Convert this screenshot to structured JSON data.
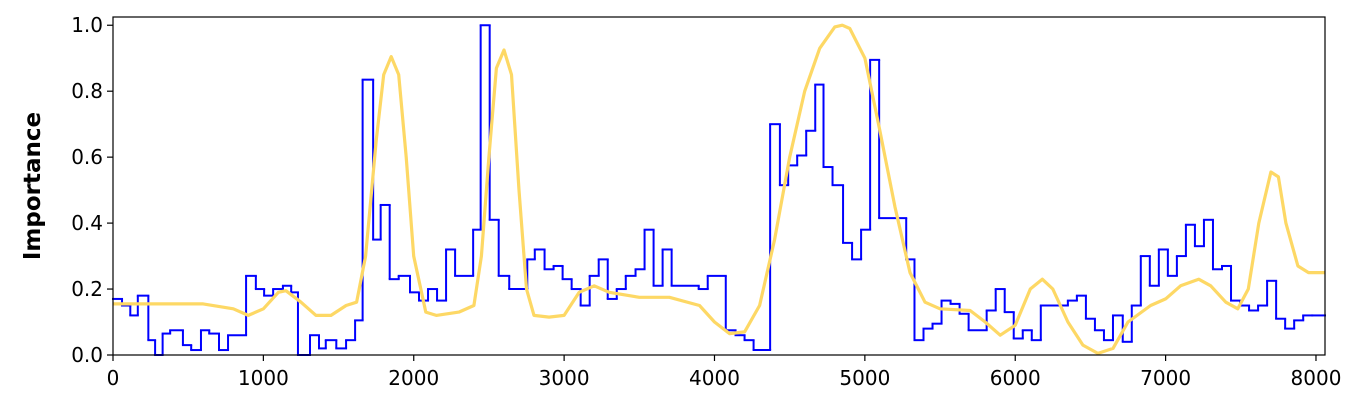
{
  "chart_data": {
    "type": "line",
    "ylabel": "Importance",
    "xlim": [
      0,
      8060
    ],
    "ylim": [
      0,
      1.025
    ],
    "xticks": [
      0,
      1000,
      2000,
      3000,
      4000,
      5000,
      6000,
      7000,
      8000
    ],
    "yticks": [
      {
        "value": 0,
        "label": "0.0"
      },
      {
        "value": 0.2,
        "label": "0.2"
      },
      {
        "value": 0.4,
        "label": "0.4"
      },
      {
        "value": 0.6,
        "label": "0.6"
      },
      {
        "value": 0.8,
        "label": "0.8"
      },
      {
        "value": 1,
        "label": "1.0"
      }
    ],
    "grid": false,
    "series": [
      {
        "color": "#0000ff",
        "step": "post",
        "x": [
          0,
          60,
          115,
          165,
          235,
          280,
          330,
          380,
          465,
          520,
          585,
          640,
          705,
          765,
          885,
          950,
          1005,
          1065,
          1130,
          1185,
          1230,
          1310,
          1370,
          1415,
          1485,
          1550,
          1610,
          1660,
          1730,
          1780,
          1840,
          1900,
          1975,
          2035,
          2095,
          2155,
          2215,
          2275,
          2395,
          2445,
          2505,
          2565,
          2635,
          2755,
          2805,
          2870,
          2930,
          2990,
          3050,
          3110,
          3170,
          3230,
          3290,
          3350,
          3410,
          3475,
          3535,
          3595,
          3655,
          3715,
          3895,
          3955,
          4075,
          4140,
          4200,
          4260,
          4370,
          4435,
          4490,
          4550,
          4610,
          4670,
          4725,
          4785,
          4855,
          4915,
          4975,
          5035,
          5095,
          5275,
          5330,
          5390,
          5450,
          5510,
          5570,
          5630,
          5690,
          5810,
          5870,
          5930,
          5990,
          6050,
          6110,
          6170,
          6350,
          6410,
          6470,
          6530,
          6590,
          6650,
          6715,
          6775,
          6835,
          6895,
          6955,
          7015,
          7075,
          7135,
          7195,
          7255,
          7315,
          7375,
          7435,
          7495,
          7555,
          7615,
          7675,
          7735,
          7795,
          7855,
          7915,
          7975
        ],
        "values": [
          0.17,
          0.15,
          0.12,
          0.18,
          0.045,
          0,
          0.065,
          0.075,
          0.03,
          0.015,
          0.075,
          0.065,
          0.015,
          0.06,
          0.24,
          0.2,
          0.18,
          0.2,
          0.21,
          0.19,
          0,
          0.06,
          0.02,
          0.045,
          0.02,
          0.045,
          0.105,
          0.835,
          0.35,
          0.455,
          0.23,
          0.24,
          0.19,
          0.165,
          0.2,
          0.165,
          0.32,
          0.24,
          0.38,
          1.0,
          0.41,
          0.24,
          0.2,
          0.29,
          0.32,
          0.26,
          0.27,
          0.23,
          0.2,
          0.15,
          0.24,
          0.29,
          0.17,
          0.2,
          0.24,
          0.26,
          0.38,
          0.21,
          0.32,
          0.21,
          0.2,
          0.24,
          0.075,
          0.06,
          0.045,
          0.015,
          0.7,
          0.515,
          0.575,
          0.605,
          0.68,
          0.82,
          0.57,
          0.515,
          0.34,
          0.29,
          0.38,
          0.895,
          0.415,
          0.29,
          0.045,
          0.08,
          0.095,
          0.165,
          0.155,
          0.125,
          0.075,
          0.135,
          0.2,
          0.13,
          0.05,
          0.075,
          0.045,
          0.15,
          0.165,
          0.18,
          0.11,
          0.075,
          0.045,
          0.12,
          0.04,
          0.15,
          0.3,
          0.21,
          0.32,
          0.24,
          0.3,
          0.395,
          0.33,
          0.41,
          0.26,
          0.27,
          0.165,
          0.15,
          0.135,
          0.15,
          0.225,
          0.11,
          0.08,
          0.105,
          0.12,
          0.12
        ]
      },
      {
        "color": "#fdd865",
        "x": [
          0,
          300,
          600,
          800,
          900,
          1000,
          1100,
          1150,
          1250,
          1350,
          1450,
          1550,
          1620,
          1680,
          1750,
          1800,
          1850,
          1900,
          1950,
          2000,
          2080,
          2150,
          2300,
          2400,
          2450,
          2500,
          2550,
          2600,
          2650,
          2700,
          2750,
          2800,
          2900,
          3000,
          3100,
          3200,
          3300,
          3500,
          3700,
          3900,
          4000,
          4100,
          4200,
          4300,
          4400,
          4500,
          4600,
          4700,
          4800,
          4850,
          4900,
          5000,
          5100,
          5200,
          5300,
          5400,
          5500,
          5700,
          5800,
          5900,
          6000,
          6100,
          6180,
          6250,
          6350,
          6450,
          6550,
          6650,
          6750,
          6900,
          7000,
          7100,
          7220,
          7300,
          7400,
          7480,
          7550,
          7620,
          7700,
          7750,
          7800,
          7880,
          7950,
          8060
        ],
        "values": [
          0.155,
          0.155,
          0.155,
          0.14,
          0.12,
          0.14,
          0.19,
          0.195,
          0.16,
          0.12,
          0.12,
          0.15,
          0.16,
          0.3,
          0.65,
          0.85,
          0.905,
          0.85,
          0.6,
          0.3,
          0.13,
          0.12,
          0.13,
          0.15,
          0.3,
          0.6,
          0.87,
          0.925,
          0.85,
          0.5,
          0.2,
          0.12,
          0.115,
          0.12,
          0.19,
          0.21,
          0.19,
          0.175,
          0.175,
          0.15,
          0.1,
          0.065,
          0.07,
          0.15,
          0.35,
          0.6,
          0.8,
          0.93,
          0.995,
          1.0,
          0.99,
          0.9,
          0.68,
          0.45,
          0.25,
          0.16,
          0.14,
          0.135,
          0.1,
          0.06,
          0.09,
          0.2,
          0.23,
          0.2,
          0.1,
          0.03,
          0.005,
          0.02,
          0.1,
          0.15,
          0.17,
          0.21,
          0.23,
          0.21,
          0.16,
          0.14,
          0.2,
          0.4,
          0.555,
          0.54,
          0.4,
          0.27,
          0.25,
          0.25
        ]
      }
    ]
  }
}
